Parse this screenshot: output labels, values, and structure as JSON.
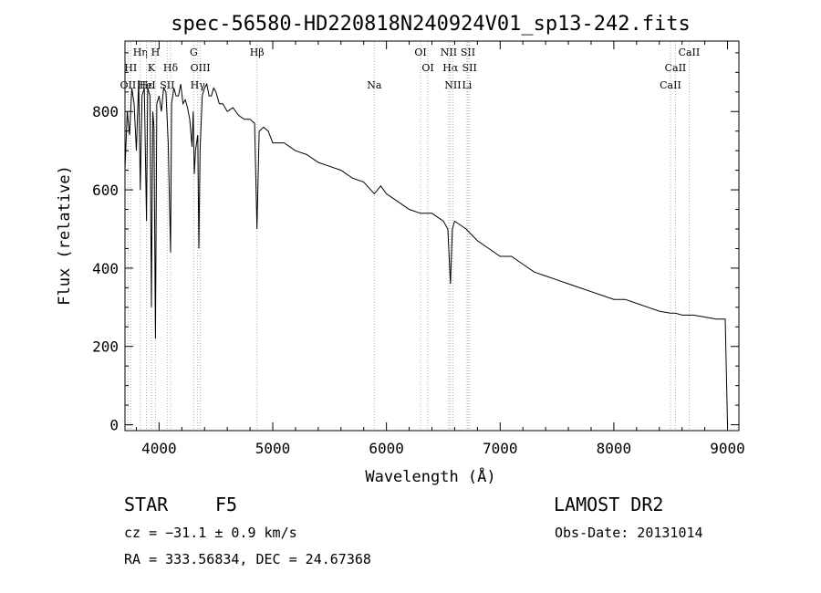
{
  "chart_data": {
    "type": "line",
    "title": "spec-56580-HD220818N240924V01_sp13-242.fits",
    "xlabel": "Wavelength (Å)",
    "ylabel": "Flux (relative)",
    "xlim": [
      3700,
      9100
    ],
    "ylim": [
      -15,
      980
    ],
    "xticks": [
      4000,
      5000,
      6000,
      7000,
      8000,
      9000
    ],
    "yticks": [
      0,
      200,
      400,
      600,
      800
    ],
    "grid": false,
    "series": [
      {
        "x": [
          3700,
          3720,
          3740,
          3760,
          3780,
          3800,
          3820,
          3835,
          3850,
          3870,
          3889,
          3900,
          3920,
          3933,
          3945,
          3955,
          3968,
          3980,
          4000,
          4020,
          4040,
          4060,
          4080,
          4101,
          4110,
          4130,
          4150,
          4170,
          4190,
          4210,
          4230,
          4250,
          4270,
          4290,
          4300,
          4310,
          4320,
          4340,
          4350,
          4360,
          4380,
          4400,
          4420,
          4440,
          4460,
          4480,
          4500,
          4530,
          4560,
          4600,
          4650,
          4700,
          4750,
          4800,
          4840,
          4861,
          4880,
          4920,
          4960,
          5000,
          5100,
          5200,
          5300,
          5400,
          5500,
          5600,
          5700,
          5800,
          5893,
          5950,
          6000,
          6100,
          6200,
          6300,
          6400,
          6500,
          6540,
          6563,
          6580,
          6600,
          6700,
          6800,
          6900,
          7000,
          7100,
          7200,
          7300,
          7400,
          7500,
          7600,
          7700,
          7800,
          7900,
          8000,
          8100,
          8200,
          8300,
          8400,
          8498,
          8542,
          8600,
          8662,
          8700,
          8800,
          8900,
          8980,
          9000
        ],
        "y": [
          650,
          800,
          740,
          860,
          820,
          700,
          880,
          600,
          840,
          860,
          520,
          860,
          840,
          300,
          800,
          760,
          220,
          820,
          840,
          800,
          860,
          850,
          720,
          440,
          820,
          860,
          840,
          840,
          870,
          820,
          830,
          810,
          780,
          710,
          800,
          640,
          700,
          740,
          450,
          700,
          840,
          860,
          870,
          840,
          840,
          860,
          850,
          820,
          820,
          800,
          810,
          790,
          780,
          780,
          770,
          500,
          750,
          760,
          750,
          720,
          720,
          700,
          690,
          670,
          660,
          650,
          630,
          620,
          590,
          610,
          590,
          570,
          550,
          540,
          540,
          520,
          500,
          360,
          500,
          520,
          500,
          470,
          450,
          430,
          430,
          410,
          390,
          380,
          370,
          360,
          350,
          340,
          330,
          320,
          320,
          310,
          300,
          290,
          285,
          285,
          280,
          280,
          280,
          275,
          270,
          270,
          0
        ]
      }
    ],
    "line_markers": [
      {
        "label": "HI",
        "x": 3750,
        "row": 1
      },
      {
        "label": "OII",
        "x": 3727,
        "row": 2
      },
      {
        "label": "Hη",
        "x": 3835,
        "row": 0
      },
      {
        "label": "Hε",
        "x": 3889,
        "row": 2
      },
      {
        "label": "HeI",
        "x": 3889,
        "row": 2
      },
      {
        "label": "H",
        "x": 3968,
        "row": 0
      },
      {
        "label": "K",
        "x": 3933,
        "row": 1
      },
      {
        "label": "Hδ",
        "x": 4101,
        "row": 1
      },
      {
        "label": "SII",
        "x": 4072,
        "row": 2
      },
      {
        "label": "G",
        "x": 4305,
        "row": 0
      },
      {
        "label": "OIII",
        "x": 4363,
        "row": 1
      },
      {
        "label": "Hγ",
        "x": 4340,
        "row": 2
      },
      {
        "label": "Hβ",
        "x": 4861,
        "row": 0
      },
      {
        "label": "Na",
        "x": 5893,
        "row": 2
      },
      {
        "label": "OI",
        "x": 6300,
        "row": 0
      },
      {
        "label": "OI",
        "x": 6364,
        "row": 1
      },
      {
        "label": "NII",
        "x": 6548,
        "row": 0
      },
      {
        "label": "SII",
        "x": 6717,
        "row": 0
      },
      {
        "label": "Hα",
        "x": 6563,
        "row": 1
      },
      {
        "label": "SII",
        "x": 6731,
        "row": 1
      },
      {
        "label": "NII",
        "x": 6584,
        "row": 2
      },
      {
        "label": "Li",
        "x": 6708,
        "row": 2
      },
      {
        "label": "CaII",
        "x": 8662,
        "row": 0
      },
      {
        "label": "CaII",
        "x": 8542,
        "row": 1
      },
      {
        "label": "CaII",
        "x": 8498,
        "row": 2
      }
    ]
  },
  "info": {
    "object_class": "STAR",
    "subclass": "F5",
    "survey": "LAMOST DR2",
    "velocity": "cz = −31.1 ± 0.9 km/s",
    "obs_date": "Obs-Date: 20131014",
    "coords": "RA = 333.56834, DEC =  24.67368"
  }
}
